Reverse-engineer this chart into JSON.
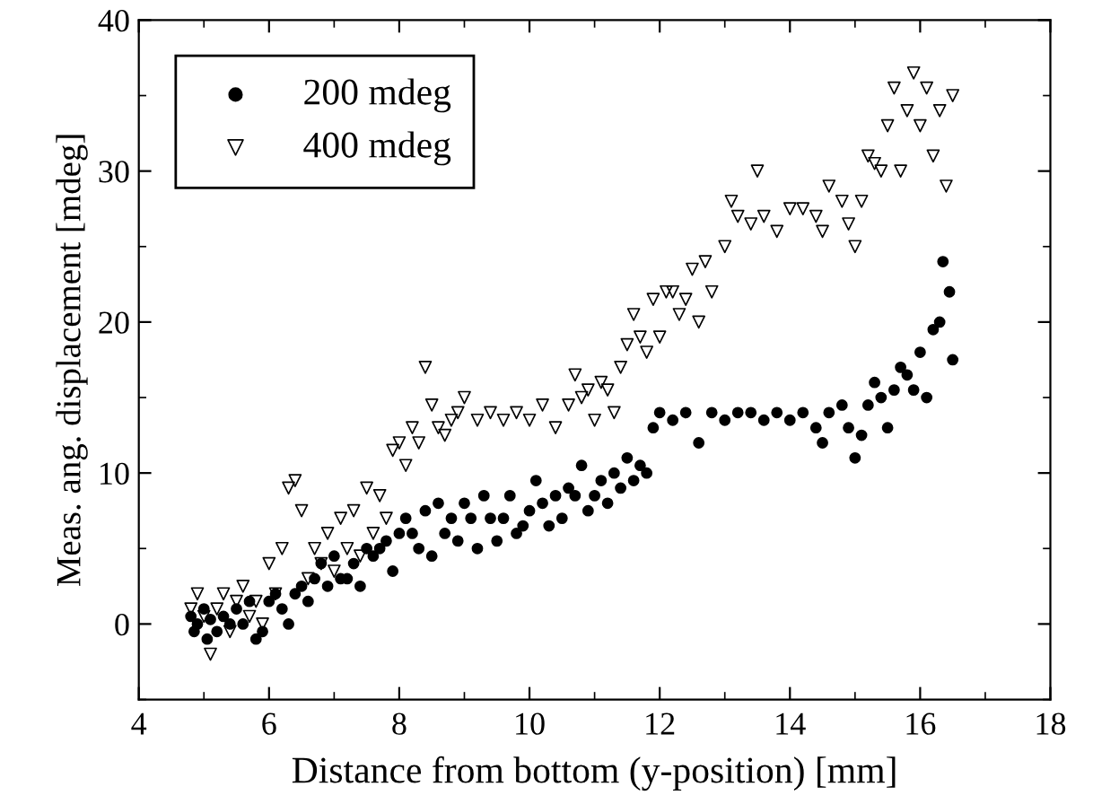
{
  "chart_data": {
    "type": "scatter",
    "xlabel": "Distance from bottom (y-position) [mm]",
    "ylabel": "Meas. ang. displacement [mdeg]",
    "xlim": [
      4,
      18
    ],
    "xticks": [
      4,
      6,
      8,
      10,
      12,
      14,
      16,
      18
    ],
    "ylim": [
      -5,
      40
    ],
    "yticks": [
      0,
      10,
      20,
      30,
      40
    ],
    "grid": false,
    "legend": "top left",
    "series": [
      {
        "name": "200 mdeg",
        "color": "#000000",
        "marker": "circle",
        "x": [
          4.8,
          4.85,
          4.9,
          5.0,
          5.05,
          5.1,
          5.2,
          5.3,
          5.4,
          5.5,
          5.6,
          5.7,
          5.8,
          5.9,
          6.0,
          6.1,
          6.2,
          6.3,
          6.4,
          6.5,
          6.6,
          6.7,
          6.8,
          6.9,
          7.0,
          7.1,
          7.2,
          7.3,
          7.4,
          7.5,
          7.6,
          7.7,
          7.8,
          7.9,
          8.0,
          8.1,
          8.2,
          8.3,
          8.4,
          8.5,
          8.6,
          8.7,
          8.8,
          8.9,
          9.0,
          9.1,
          9.2,
          9.3,
          9.4,
          9.5,
          9.6,
          9.7,
          9.8,
          9.9,
          10.0,
          10.1,
          10.2,
          10.3,
          10.4,
          10.5,
          10.6,
          10.7,
          10.8,
          10.9,
          11.0,
          11.1,
          11.2,
          11.3,
          11.4,
          11.5,
          11.6,
          11.7,
          11.8,
          11.9,
          12.0,
          12.2,
          12.4,
          12.6,
          12.8,
          13.0,
          13.2,
          13.4,
          13.6,
          13.8,
          14.0,
          14.2,
          14.4,
          14.5,
          14.6,
          14.8,
          14.9,
          15.0,
          15.1,
          15.2,
          15.3,
          15.4,
          15.5,
          15.6,
          15.7,
          15.8,
          15.9,
          16.0,
          16.1,
          16.2,
          16.3,
          16.35,
          16.45,
          16.5
        ],
        "values": [
          0.5,
          -0.5,
          0,
          1,
          -1,
          0.3,
          -0.5,
          0.5,
          0,
          1,
          0,
          1.5,
          -1,
          -0.5,
          1.5,
          2,
          1,
          0,
          2,
          2.5,
          1.5,
          3,
          4,
          2.5,
          4.5,
          3,
          3,
          4,
          2.5,
          5,
          4.5,
          5,
          5.5,
          3.5,
          6,
          7,
          6,
          5,
          7.5,
          4.5,
          8,
          6,
          7,
          5.5,
          8,
          7,
          5,
          8.5,
          7,
          5.5,
          7,
          8.5,
          6,
          6.5,
          7.5,
          9.5,
          8,
          6.5,
          8.5,
          7,
          9,
          8.5,
          10.5,
          7.5,
          8.5,
          9.5,
          8,
          10,
          9,
          11,
          9.5,
          10.5,
          10,
          13,
          14,
          13.5,
          14,
          12,
          14,
          13.5,
          14,
          14,
          13.5,
          14,
          13.5,
          14,
          13,
          12,
          14,
          14.5,
          13,
          11,
          12.5,
          14.5,
          16,
          15,
          13,
          15.5,
          17,
          16.5,
          15.5,
          18,
          15,
          19.5,
          20,
          24,
          22,
          17.5
        ]
      },
      {
        "name": "400 mdeg",
        "color": "#000000",
        "marker": "triangle",
        "x": [
          4.8,
          4.9,
          5.0,
          5.1,
          5.2,
          5.3,
          5.4,
          5.5,
          5.6,
          5.7,
          5.8,
          5.9,
          6.0,
          6.1,
          6.2,
          6.3,
          6.4,
          6.5,
          6.6,
          6.7,
          6.8,
          6.9,
          7.0,
          7.1,
          7.2,
          7.3,
          7.4,
          7.5,
          7.6,
          7.7,
          7.8,
          7.9,
          8.0,
          8.1,
          8.2,
          8.3,
          8.4,
          8.5,
          8.6,
          8.7,
          8.8,
          8.9,
          9.0,
          9.2,
          9.4,
          9.6,
          9.8,
          10.0,
          10.2,
          10.4,
          10.6,
          10.7,
          10.8,
          10.9,
          11.0,
          11.1,
          11.2,
          11.3,
          11.4,
          11.5,
          11.6,
          11.7,
          11.8,
          11.9,
          12.0,
          12.1,
          12.2,
          12.3,
          12.4,
          12.5,
          12.6,
          12.7,
          12.8,
          13.0,
          13.1,
          13.2,
          13.4,
          13.5,
          13.6,
          13.8,
          14.0,
          14.2,
          14.4,
          14.5,
          14.6,
          14.8,
          14.9,
          15.0,
          15.1,
          15.2,
          15.3,
          15.4,
          15.5,
          15.6,
          15.7,
          15.8,
          15.9,
          16.0,
          16.1,
          16.2,
          16.3,
          16.4,
          16.5
        ],
        "values": [
          1,
          2,
          0.5,
          -2,
          1,
          2,
          -0.5,
          1.5,
          2.5,
          0.5,
          1.5,
          0,
          4,
          2,
          5,
          9,
          9.5,
          7.5,
          3,
          5,
          4,
          6,
          3.5,
          7,
          5,
          7.5,
          4.5,
          9,
          6,
          8.5,
          7,
          11.5,
          12,
          10.5,
          13,
          12,
          17,
          14.5,
          13,
          12.5,
          13.5,
          14,
          15,
          13.5,
          14,
          13.5,
          14,
          13.5,
          14.5,
          13,
          14.5,
          16.5,
          15,
          15.5,
          13.5,
          16,
          15.5,
          14,
          17,
          18.5,
          20.5,
          19,
          18,
          21.5,
          19,
          22,
          22,
          20.5,
          21.5,
          23.5,
          20,
          24,
          22,
          25,
          28,
          27,
          26.5,
          30,
          27,
          26,
          27.5,
          27.5,
          27,
          26,
          29,
          28,
          26.5,
          25,
          28,
          31,
          30.5,
          30,
          33,
          35.5,
          30,
          34,
          36.5,
          33,
          35.5,
          31,
          34,
          29,
          35
        ]
      }
    ]
  }
}
